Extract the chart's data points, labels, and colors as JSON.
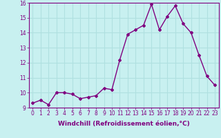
{
  "x": [
    0,
    1,
    2,
    3,
    4,
    5,
    6,
    7,
    8,
    9,
    10,
    11,
    12,
    13,
    14,
    15,
    16,
    17,
    18,
    19,
    20,
    21,
    22,
    23
  ],
  "y": [
    9.3,
    9.5,
    9.2,
    10.0,
    10.0,
    9.9,
    9.6,
    9.7,
    9.8,
    10.3,
    10.2,
    12.2,
    13.9,
    14.2,
    14.5,
    15.9,
    14.2,
    15.1,
    15.8,
    14.6,
    14.0,
    12.5,
    11.1,
    10.5
  ],
  "line_color": "#800080",
  "marker": "D",
  "marker_size": 2.0,
  "linewidth": 1.0,
  "xlabel": "Windchill (Refroidissement éolien,°C)",
  "xlabel_fontsize": 6.5,
  "ylim": [
    9,
    16
  ],
  "xlim": [
    -0.5,
    23.5
  ],
  "yticks": [
    9,
    10,
    11,
    12,
    13,
    14,
    15,
    16
  ],
  "xticks": [
    0,
    1,
    2,
    3,
    4,
    5,
    6,
    7,
    8,
    9,
    10,
    11,
    12,
    13,
    14,
    15,
    16,
    17,
    18,
    19,
    20,
    21,
    22,
    23
  ],
  "xtick_labels": [
    "0",
    "1",
    "2",
    "3",
    "4",
    "5",
    "6",
    "7",
    "8",
    "9",
    "10",
    "11",
    "12",
    "13",
    "14",
    "15",
    "16",
    "17",
    "18",
    "19",
    "20",
    "21",
    "22",
    "23"
  ],
  "bg_color": "#c8f0f0",
  "grid_color": "#b0e0e0",
  "tick_fontsize": 5.5,
  "border_color": "#800080"
}
